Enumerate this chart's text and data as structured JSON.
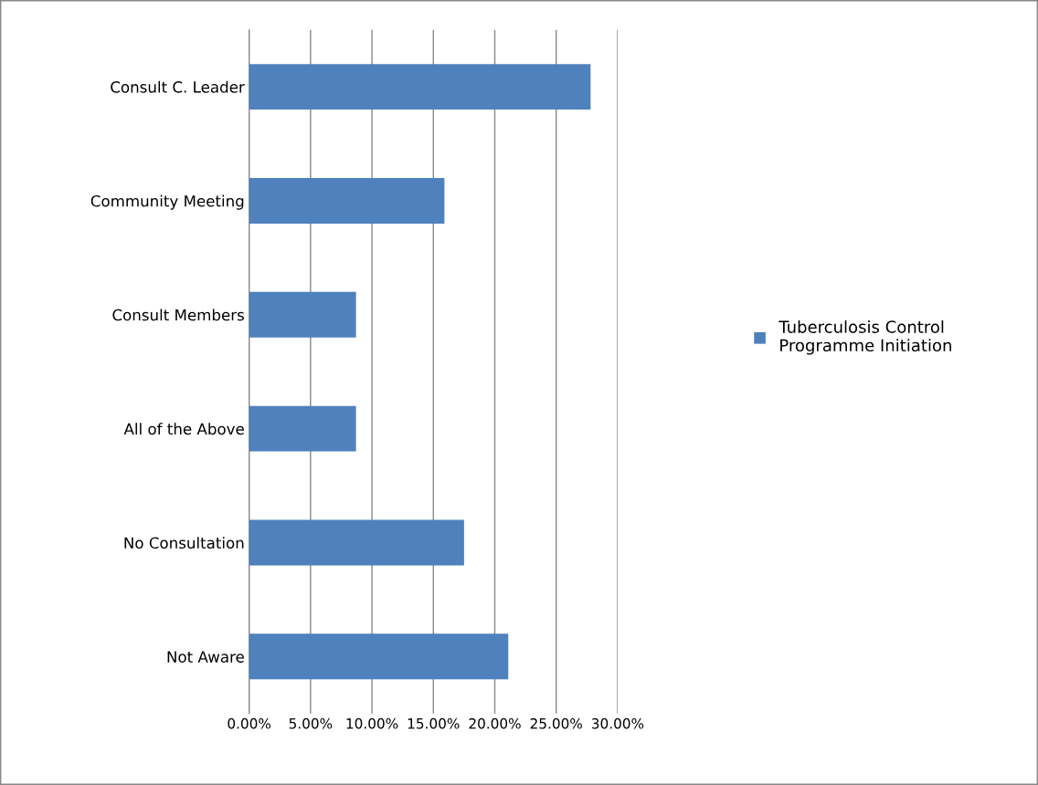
{
  "chart_data": {
    "type": "bar",
    "orientation": "horizontal",
    "categories": [
      "Consult C. Leader",
      "Community Meeting",
      "Consult Members",
      "All of the Above",
      "No Consultation",
      "Not Aware"
    ],
    "series": [
      {
        "name": "Tuberculosis Control Programme Initiation",
        "color": "#4f81bd",
        "values": [
          27.8,
          15.9,
          8.7,
          8.7,
          17.5,
          21.1
        ]
      }
    ],
    "xlim": [
      0,
      30
    ],
    "xticks": [
      {
        "value": 0,
        "label": "0.00%"
      },
      {
        "value": 5,
        "label": "5.00%"
      },
      {
        "value": 10,
        "label": "10.00%"
      },
      {
        "value": 15,
        "label": "15.00%"
      },
      {
        "value": 20,
        "label": "20.00%"
      },
      {
        "value": 25,
        "label": "25.00%"
      },
      {
        "value": 30,
        "label": "30.00%"
      }
    ],
    "grid": "x",
    "legend": "right"
  }
}
